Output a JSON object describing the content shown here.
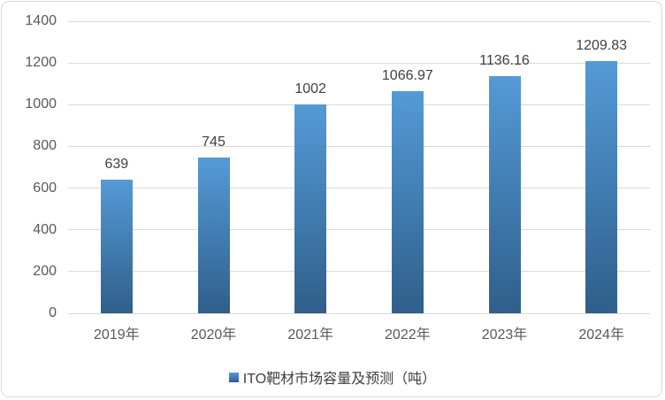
{
  "chart_data": {
    "type": "bar",
    "title": "",
    "xlabel": "",
    "ylabel": "",
    "categories": [
      "2019年",
      "2020年",
      "2021年",
      "2022年",
      "2023年",
      "2024年"
    ],
    "values": [
      639,
      745,
      1002,
      1066.97,
      1136.16,
      1209.83
    ],
    "value_labels": [
      "639",
      "745",
      "1002",
      "1066.97",
      "1136.16",
      "1209.83"
    ],
    "legend": "ITO靶材市场容量及预测（吨）",
    "legend_position": "bottom",
    "ylim": [
      0,
      1400
    ],
    "yticks": [
      0,
      200,
      400,
      600,
      800,
      1000,
      1200,
      1400
    ],
    "grid": true,
    "colors": {
      "bar_top": "#549ad7",
      "bar_bottom": "#2f5f8a",
      "gridline": "#d9d9d9",
      "tick_label": "#595959",
      "value_label": "#404040",
      "border": "#d9d9d9",
      "background": "#ffffff"
    }
  }
}
